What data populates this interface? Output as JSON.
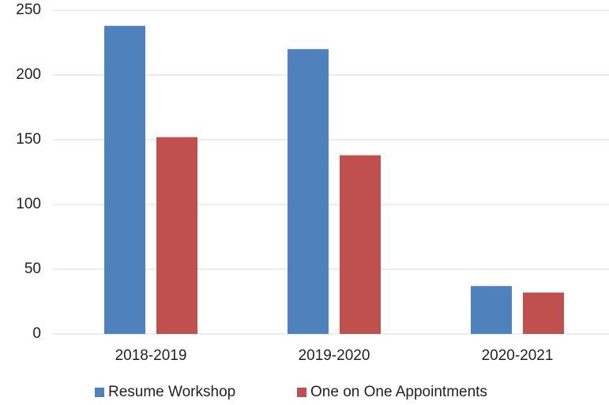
{
  "chart_data": {
    "type": "bar",
    "categories": [
      "2018-2019",
      "2019-2020",
      "2020-2021"
    ],
    "series": [
      {
        "name": "Resume Workshop",
        "color": "#4f81bd",
        "values": [
          238,
          220,
          37
        ]
      },
      {
        "name": "One on One Appointments",
        "color": "#c0504d",
        "values": [
          152,
          138,
          32
        ]
      }
    ],
    "ylim": [
      0,
      250
    ],
    "yticks": [
      0,
      50,
      100,
      150,
      200,
      250
    ],
    "grid": true,
    "legend": "bottom"
  }
}
